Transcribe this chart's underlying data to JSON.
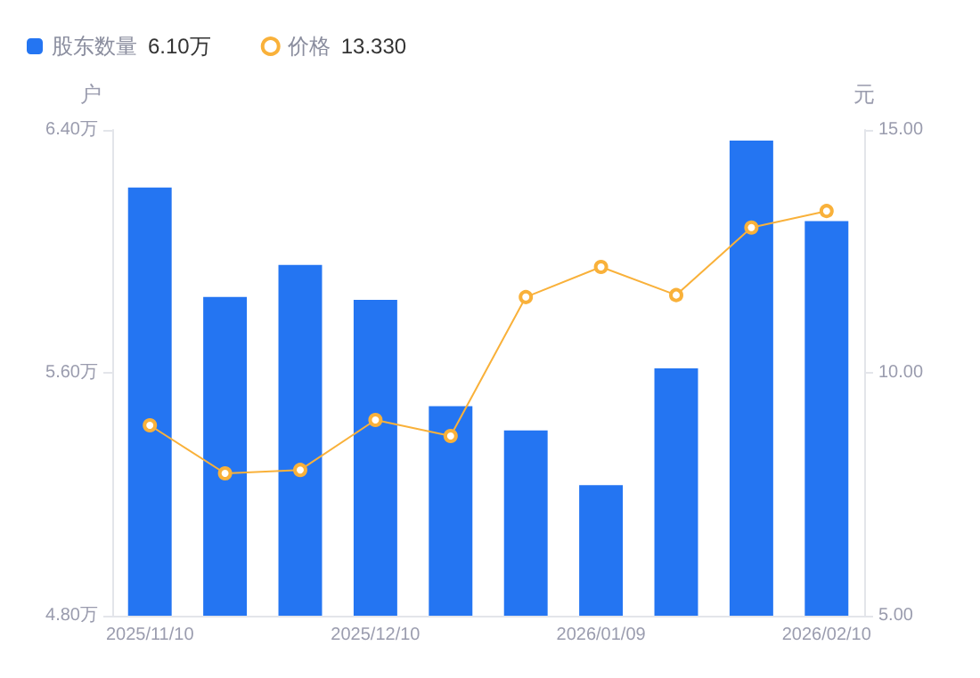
{
  "chart_data": {
    "type": "bar",
    "xlabel": null,
    "ylabel": "户",
    "y2label": "元",
    "categories": [
      "2025/11/10",
      null,
      null,
      "2025/12/10",
      null,
      null,
      "2026/01/09",
      null,
      null,
      "2026/02/10"
    ],
    "series": [
      {
        "name": "股东数量",
        "color": "#2475f2",
        "values": [
          6.21,
          5.85,
          5.955,
          5.84,
          5.49,
          5.41,
          5.23,
          5.615,
          6.365,
          6.1
        ]
      },
      {
        "name": "价格",
        "type": "line",
        "axis": "y2",
        "color": "#f9b13a",
        "values": [
          8.92,
          7.93,
          8.0,
          9.03,
          8.7,
          11.56,
          12.18,
          11.6,
          12.99,
          13.33
        ]
      }
    ],
    "annotations": [
      "6.10万",
      "13.330"
    ],
    "ylim": [
      4.8,
      6.4
    ],
    "yticks": [
      {
        "value": 4.8,
        "label": "4.80万"
      },
      {
        "value": 5.6,
        "label": "5.60万"
      },
      {
        "value": 6.4,
        "label": "6.40万"
      }
    ],
    "y2lim": [
      5,
      15
    ],
    "y2ticks": [
      {
        "value": 5,
        "label": "5.00"
      },
      {
        "value": 10,
        "label": "10.00"
      },
      {
        "value": 15,
        "label": "15.00"
      }
    ],
    "legend": "top left",
    "grid": false,
    "marker": "circle",
    "line_style": "solid"
  }
}
